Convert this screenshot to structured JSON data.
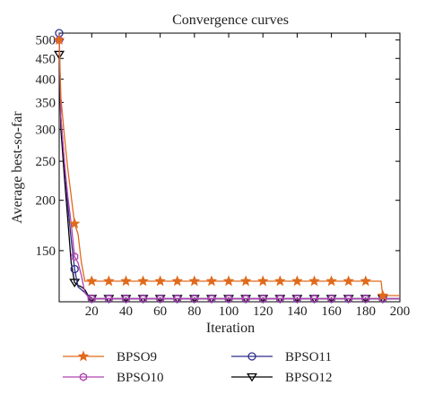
{
  "chart_data": {
    "type": "line",
    "title": "Convergence curves",
    "xlabel": "Iteration",
    "ylabel": "Average best-so-far",
    "xlim": [
      1,
      200
    ],
    "ylim": [
      112,
      520
    ],
    "y_scale": "log",
    "grid": false,
    "legend_position": "bottom",
    "x_ticks": [
      20,
      40,
      60,
      80,
      100,
      120,
      140,
      160,
      180,
      200
    ],
    "y_ticks": [
      150,
      200,
      250,
      300,
      350,
      400,
      450,
      500
    ],
    "marker_interval": 10,
    "series": [
      {
        "name": "BPSO9",
        "color": "#e06a1c",
        "marker": "star",
        "x": [
          1,
          2,
          4,
          6,
          8,
          10,
          12,
          14,
          16,
          20,
          30,
          60,
          100,
          150,
          189,
          190,
          193,
          200
        ],
        "y": [
          500,
          360,
          290,
          240,
          205,
          175,
          165,
          140,
          126,
          126,
          126,
          126,
          126,
          126,
          126,
          116,
          116,
          116
        ]
      },
      {
        "name": "BPSO10",
        "color": "#b040b0",
        "marker": "hexagon",
        "x": [
          1,
          2,
          4,
          6,
          8,
          10,
          12,
          14,
          16,
          18,
          20,
          30,
          100,
          200
        ],
        "y": [
          500,
          320,
          250,
          205,
          175,
          145,
          140,
          130,
          118,
          115,
          114,
          114,
          114,
          114
        ]
      },
      {
        "name": "BPSO11",
        "color": "#2e2e8c",
        "marker": "circle",
        "x": [
          1,
          2,
          4,
          6,
          8,
          10,
          12,
          14,
          16,
          18,
          20,
          30,
          100,
          200
        ],
        "y": [
          520,
          320,
          250,
          195,
          160,
          135,
          122,
          120,
          118,
          116,
          114,
          114,
          114,
          114
        ]
      },
      {
        "name": "BPSO12",
        "color": "#000000",
        "marker": "triangle-down",
        "x": [
          1,
          2,
          4,
          6,
          8,
          10,
          12,
          14,
          16,
          18,
          20,
          30,
          100,
          200
        ],
        "y": [
          460,
          300,
          230,
          180,
          140,
          125,
          123,
          122,
          120,
          116,
          114,
          114,
          114,
          114
        ]
      }
    ]
  }
}
